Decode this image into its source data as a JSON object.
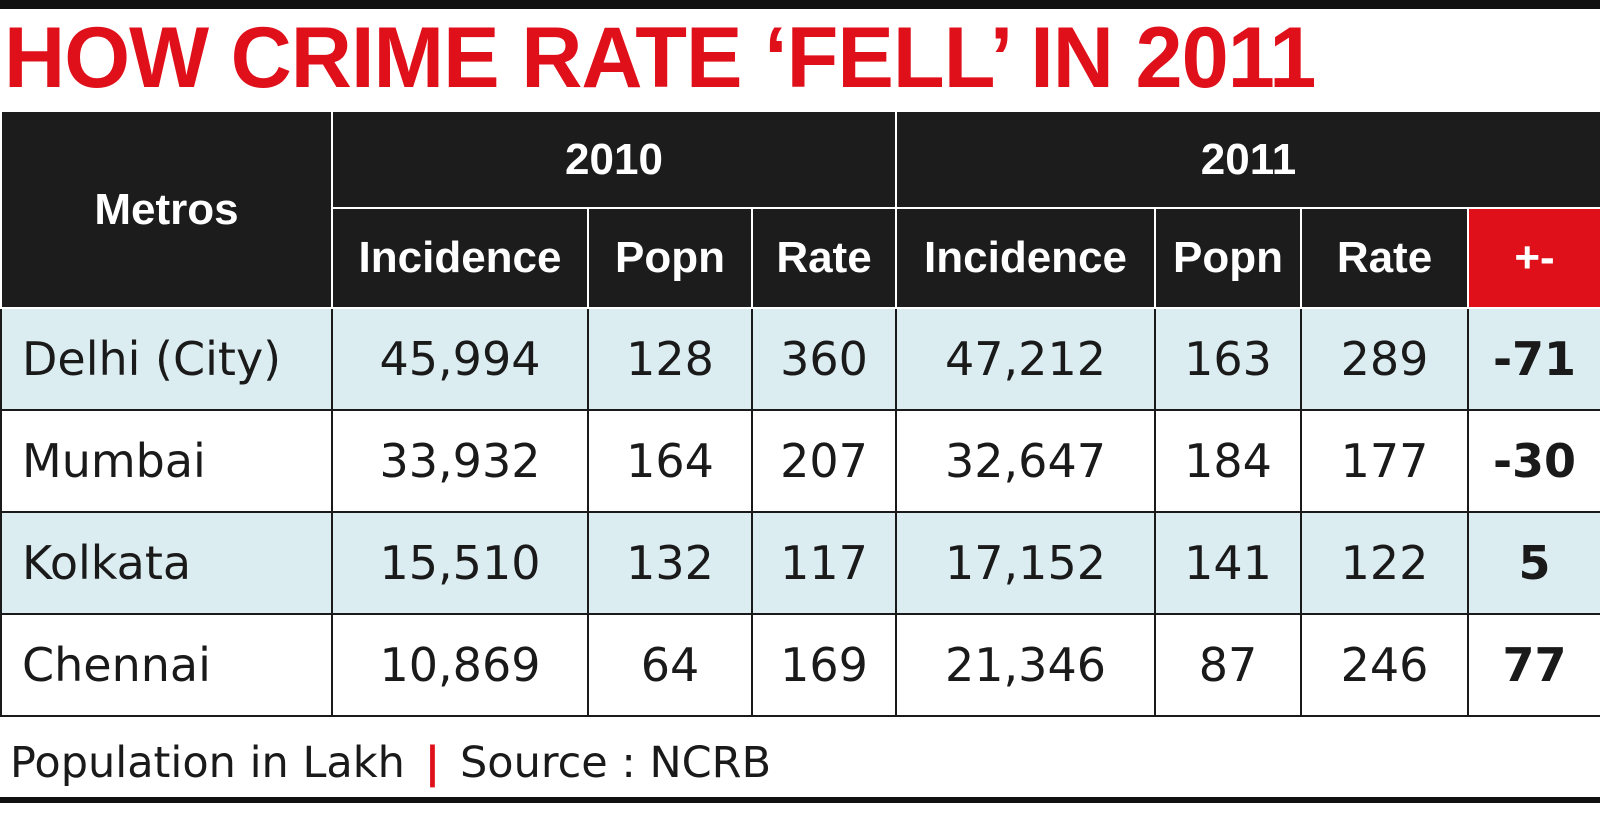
{
  "title": "HOW CRIME RATE ‘FELL’ IN 2011",
  "colors": {
    "accent": "#e0101b",
    "header_bg": "#1c1c1c",
    "row_shade": "#dcedf2",
    "text": "#1a1a1a"
  },
  "table": {
    "metro_header": "Metros",
    "years": [
      "2010",
      "2011"
    ],
    "sub_headers": {
      "incidence": "Incidence",
      "popn": "Popn",
      "rate": "Rate",
      "change": "+-"
    },
    "rows": [
      {
        "metro": "Delhi (City)",
        "inc_2010": "45,994",
        "popn_2010": "128",
        "rate_2010": "360",
        "inc_2011": "47,212",
        "popn_2011": "163",
        "rate_2011": "289",
        "change": "-71"
      },
      {
        "metro": "Mumbai",
        "inc_2010": "33,932",
        "popn_2010": "164",
        "rate_2010": "207",
        "inc_2011": "32,647",
        "popn_2011": "184",
        "rate_2011": "177",
        "change": "-30"
      },
      {
        "metro": "Kolkata",
        "inc_2010": "15,510",
        "popn_2010": "132",
        "rate_2010": "117",
        "inc_2011": "17,152",
        "popn_2011": "141",
        "rate_2011": "122",
        "change": "5"
      },
      {
        "metro": "Chennai",
        "inc_2010": "10,869",
        "popn_2010": "64",
        "rate_2010": "169",
        "inc_2011": "21,346",
        "popn_2011": "87",
        "rate_2011": "246",
        "change": "77"
      }
    ]
  },
  "footnote": {
    "left": "Population in Lakh",
    "separator": "|",
    "right": "Source : NCRB"
  },
  "chart_data": {
    "type": "table",
    "title": "HOW CRIME RATE ‘FELL’ IN 2011",
    "columns": [
      "Metros",
      "2010 Incidence",
      "2010 Popn",
      "2010 Rate",
      "2011 Incidence",
      "2011 Popn",
      "2011 Rate",
      "+-"
    ],
    "rows": [
      [
        "Delhi (City)",
        45994,
        128,
        360,
        47212,
        163,
        289,
        -71
      ],
      [
        "Mumbai",
        33932,
        164,
        207,
        32647,
        184,
        177,
        -30
      ],
      [
        "Kolkata",
        15510,
        132,
        117,
        17152,
        141,
        122,
        5
      ],
      [
        "Chennai",
        10869,
        64,
        169,
        21346,
        87,
        246,
        77
      ]
    ],
    "notes": [
      "Population in Lakh",
      "Source : NCRB"
    ]
  }
}
